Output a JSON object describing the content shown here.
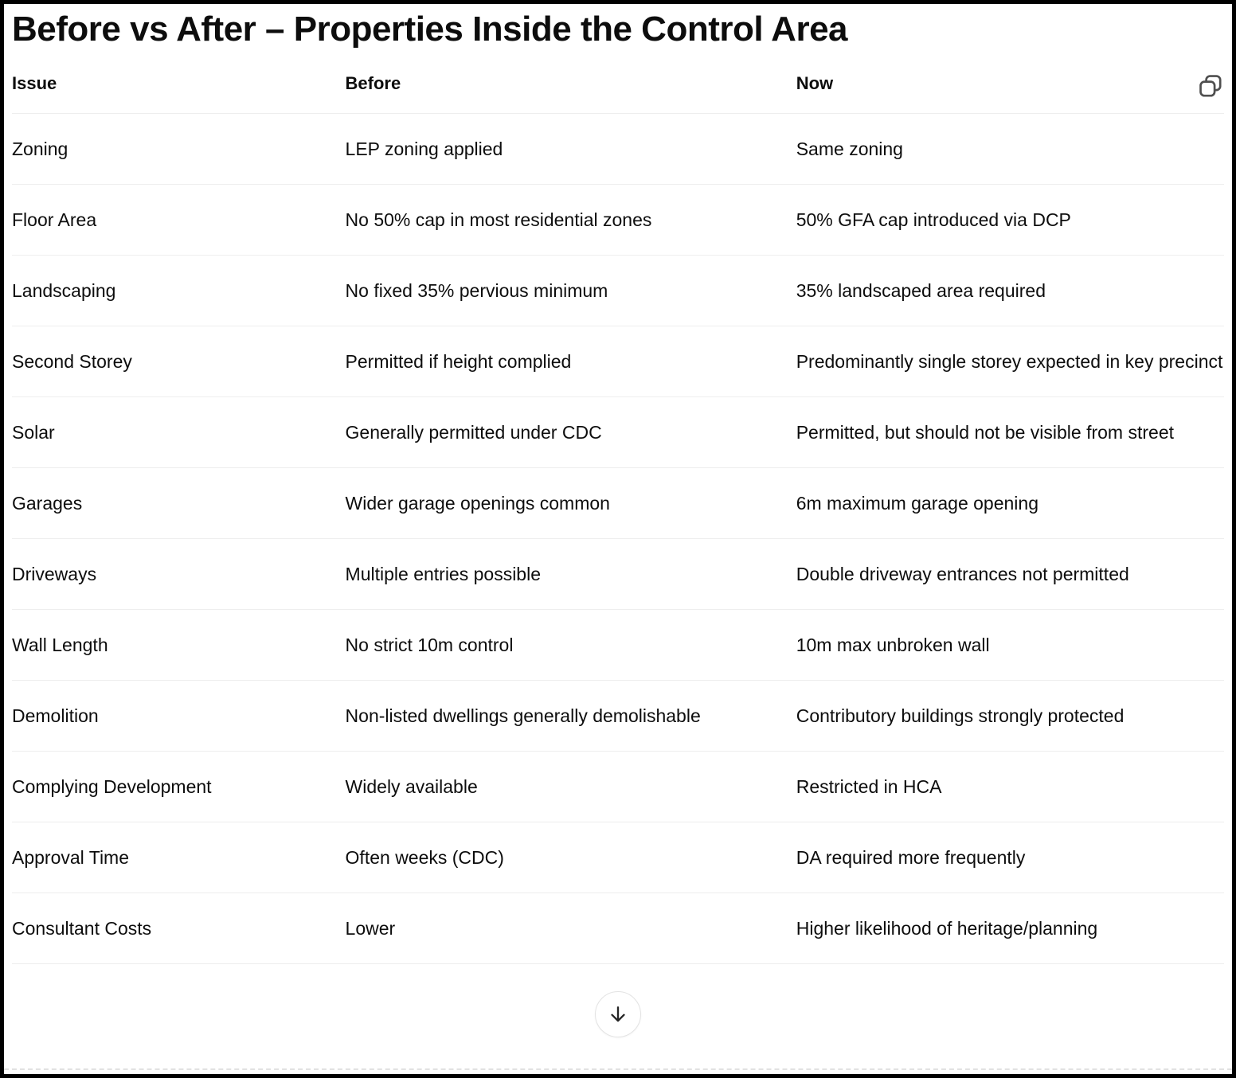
{
  "title": "Before vs After – Properties Inside the Control Area",
  "toolbar": {
    "copy_icon": "copy-icon",
    "scroll_down_icon": "arrow-down-icon"
  },
  "table": {
    "columns": [
      "Issue",
      "Before",
      "Now"
    ],
    "rows": [
      [
        "Zoning",
        "LEP zoning applied",
        "Same zoning"
      ],
      [
        "Floor Area",
        "No 50% cap in most residential zones",
        "50% GFA cap introduced via DCP"
      ],
      [
        "Landscaping",
        "No fixed 35% pervious minimum",
        "35% landscaped area required"
      ],
      [
        "Second Storey",
        "Permitted if height complied",
        "Predominantly single storey expected in key precinct"
      ],
      [
        "Solar",
        "Generally permitted under CDC",
        "Permitted, but should not be visible from street"
      ],
      [
        "Garages",
        "Wider garage openings common",
        "6m maximum garage opening"
      ],
      [
        "Driveways",
        "Multiple entries possible",
        "Double driveway entrances not permitted"
      ],
      [
        "Wall Length",
        "No strict 10m control",
        "10m max unbroken wall"
      ],
      [
        "Demolition",
        "Non-listed dwellings generally demolishable",
        "Contributory buildings strongly protected"
      ],
      [
        "Complying Development",
        "Widely available",
        "Restricted in HCA"
      ],
      [
        "Approval Time",
        "Often weeks (CDC)",
        "DA required more frequently"
      ],
      [
        "Consultant Costs",
        "Lower",
        "Higher likelihood of heritage/planning"
      ]
    ]
  },
  "colors": {
    "text": "#0d0d0d",
    "separator": "#eeeeee",
    "frame_border": "#000000",
    "icon_stroke": "#4f4f4f",
    "circle_border": "#e3e3e3",
    "cutoff_dash": "#e2e2e2"
  }
}
